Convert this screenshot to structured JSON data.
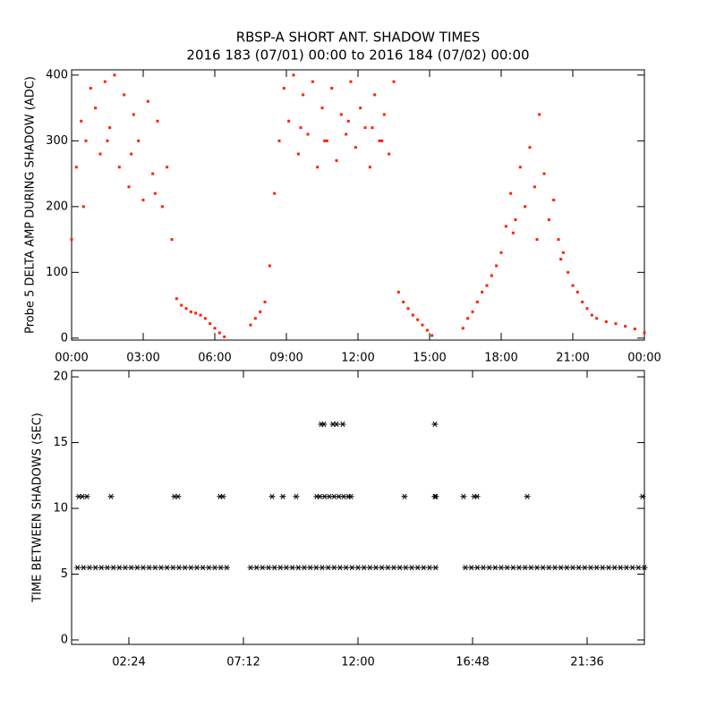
{
  "chart_data": [
    {
      "type": "scatter",
      "title": "RBSP-A SHORT ANT. SHADOW TIMES",
      "subtitle": "2016 183 (07/01) 00:00 to 2016 184 (07/02) 00:00",
      "y_label": "Probe 5 DELTA AMP DURING SHADOW (ADC)",
      "color": "#ff2000",
      "xlim": [
        0,
        24
      ],
      "ylim": [
        -3,
        408
      ],
      "xticks": [
        {
          "value": 0,
          "label": "00:00"
        },
        {
          "value": 3,
          "label": "03:00"
        },
        {
          "value": 6,
          "label": "06:00"
        },
        {
          "value": 9,
          "label": "09:00"
        },
        {
          "value": 12,
          "label": "12:00"
        },
        {
          "value": 15,
          "label": "15:00"
        },
        {
          "value": 18,
          "label": "18:00"
        },
        {
          "value": 21,
          "label": "21:00"
        },
        {
          "value": 24,
          "label": "00:00"
        }
      ],
      "yticks": [
        0,
        100,
        200,
        300,
        400
      ],
      "x": [
        0.0,
        0.2,
        0.4,
        0.6,
        0.8,
        1.0,
        1.2,
        1.4,
        1.6,
        1.8,
        2.0,
        2.2,
        2.4,
        2.6,
        2.8,
        3.0,
        3.2,
        3.4,
        3.6,
        3.8,
        4.0,
        4.2,
        4.4,
        4.6,
        4.8,
        5.0,
        5.2,
        5.4,
        5.6,
        5.8,
        6.0,
        6.2,
        6.4,
        7.5,
        7.7,
        7.9,
        8.1,
        8.3,
        8.5,
        8.7,
        8.9,
        9.1,
        9.3,
        9.5,
        9.7,
        9.9,
        10.1,
        10.3,
        10.5,
        10.7,
        10.9,
        11.1,
        11.3,
        11.5,
        11.7,
        11.9,
        12.1,
        12.3,
        12.5,
        12.7,
        12.9,
        13.1,
        13.3,
        13.5,
        13.7,
        13.9,
        14.1,
        14.3,
        14.5,
        14.7,
        14.9,
        15.1,
        16.4,
        16.6,
        16.8,
        17.0,
        17.2,
        17.4,
        17.6,
        17.8,
        18.0,
        18.2,
        18.4,
        18.6,
        18.8,
        19.0,
        19.2,
        19.4,
        19.6,
        19.8,
        20.0,
        20.2,
        20.4,
        20.6,
        20.8,
        21.0,
        21.2,
        21.4,
        21.6,
        21.8,
        22.0,
        22.4,
        22.8,
        23.2,
        23.6,
        24.0,
        0.5,
        1.5,
        2.5,
        3.5,
        9.6,
        10.6,
        11.6,
        12.6,
        13.0,
        18.5,
        19.5,
        20.5
      ],
      "values": [
        150,
        260,
        330,
        300,
        380,
        350,
        280,
        390,
        320,
        400,
        260,
        370,
        230,
        340,
        300,
        210,
        360,
        250,
        330,
        200,
        260,
        150,
        60,
        50,
        45,
        40,
        38,
        35,
        30,
        22,
        15,
        8,
        2,
        20,
        30,
        40,
        55,
        110,
        220,
        300,
        380,
        330,
        400,
        280,
        370,
        310,
        390,
        260,
        350,
        300,
        380,
        270,
        340,
        310,
        390,
        290,
        350,
        320,
        260,
        370,
        300,
        340,
        280,
        390,
        70,
        55,
        45,
        35,
        28,
        20,
        12,
        4,
        15,
        30,
        40,
        55,
        70,
        80,
        95,
        110,
        130,
        170,
        220,
        180,
        260,
        200,
        290,
        230,
        340,
        250,
        180,
        210,
        150,
        130,
        100,
        80,
        70,
        55,
        45,
        35,
        30,
        25,
        22,
        18,
        14,
        8,
        200,
        300,
        280,
        220,
        320,
        300,
        330,
        320,
        300,
        160,
        150,
        120
      ]
    },
    {
      "type": "scatter",
      "y_label": "TIME BETWEEN SHADOWS (SEC)",
      "color": "#000000",
      "xlim": [
        0,
        24
      ],
      "ylim": [
        -0.34,
        20.48
      ],
      "xticks": [
        {
          "value": 2.4,
          "label": "02:24"
        },
        {
          "value": 7.2,
          "label": "07:12"
        },
        {
          "value": 12,
          "label": "12:00"
        },
        {
          "value": 16.8,
          "label": "16:48"
        },
        {
          "value": 21.6,
          "label": "21:36"
        }
      ],
      "yticks": [
        0,
        5,
        10,
        15,
        20
      ],
      "x": [
        0.25,
        0.5,
        0.75,
        1.0,
        1.25,
        1.5,
        1.75,
        2.0,
        2.25,
        2.5,
        2.75,
        3.0,
        3.25,
        3.5,
        3.75,
        4.0,
        4.25,
        4.5,
        4.75,
        5.0,
        5.25,
        5.5,
        5.75,
        6.0,
        6.25,
        6.5,
        7.5,
        7.75,
        8.0,
        8.25,
        8.5,
        8.75,
        9.0,
        9.25,
        9.5,
        9.75,
        10.0,
        10.25,
        10.5,
        10.75,
        11.0,
        11.25,
        11.5,
        11.75,
        12.0,
        12.25,
        12.5,
        12.75,
        13.0,
        13.25,
        13.5,
        13.75,
        14.0,
        14.25,
        14.5,
        14.75,
        15.0,
        15.25,
        16.5,
        16.75,
        17.0,
        17.25,
        17.5,
        17.75,
        18.0,
        18.25,
        18.5,
        18.75,
        19.0,
        19.25,
        19.5,
        19.75,
        20.0,
        20.25,
        20.5,
        20.75,
        21.0,
        21.25,
        21.5,
        21.75,
        22.0,
        22.25,
        22.5,
        22.75,
        23.0,
        23.25,
        23.5,
        23.75,
        24.0,
        0.3,
        0.45,
        0.64,
        1.65,
        4.31,
        4.46,
        6.22,
        6.34,
        8.4,
        8.85,
        9.41,
        10.27,
        10.4,
        10.6,
        10.8,
        11.0,
        11.2,
        11.4,
        11.6,
        11.7,
        13.95,
        15.22,
        15.26,
        16.42,
        16.87,
        16.99,
        19.09,
        23.92,
        10.46,
        10.57,
        10.95,
        11.1,
        11.36,
        15.22
      ],
      "values": [
        5.5,
        5.5,
        5.5,
        5.5,
        5.5,
        5.5,
        5.5,
        5.5,
        5.5,
        5.5,
        5.5,
        5.5,
        5.5,
        5.5,
        5.5,
        5.5,
        5.5,
        5.5,
        5.5,
        5.5,
        5.5,
        5.5,
        5.5,
        5.5,
        5.5,
        5.5,
        5.5,
        5.5,
        5.5,
        5.5,
        5.5,
        5.5,
        5.5,
        5.5,
        5.5,
        5.5,
        5.5,
        5.5,
        5.5,
        5.5,
        5.5,
        5.5,
        5.5,
        5.5,
        5.5,
        5.5,
        5.5,
        5.5,
        5.5,
        5.5,
        5.5,
        5.5,
        5.5,
        5.5,
        5.5,
        5.5,
        5.5,
        5.5,
        5.5,
        5.5,
        5.5,
        5.5,
        5.5,
        5.5,
        5.5,
        5.5,
        5.5,
        5.5,
        5.5,
        5.5,
        5.5,
        5.5,
        5.5,
        5.5,
        5.5,
        5.5,
        5.5,
        5.5,
        5.5,
        5.5,
        5.5,
        5.5,
        5.5,
        5.5,
        5.5,
        5.5,
        5.5,
        5.5,
        5.5,
        10.9,
        10.9,
        10.9,
        10.9,
        10.9,
        10.9,
        10.9,
        10.9,
        10.9,
        10.9,
        10.9,
        10.9,
        10.9,
        10.9,
        10.9,
        10.9,
        10.9,
        10.9,
        10.9,
        10.9,
        10.9,
        10.9,
        10.9,
        10.9,
        10.9,
        10.9,
        10.9,
        10.9,
        16.4,
        16.4,
        16.4,
        16.4,
        16.4,
        16.4
      ]
    }
  ]
}
